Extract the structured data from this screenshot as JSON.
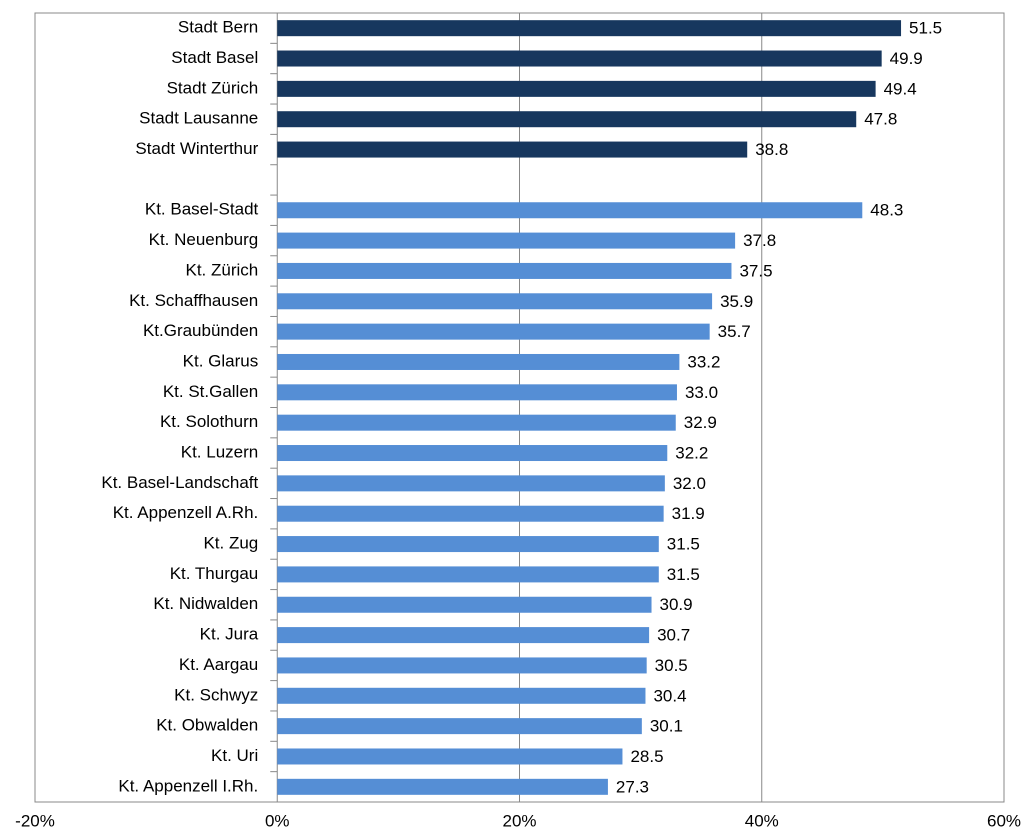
{
  "chart_data": {
    "type": "barh",
    "categories": [
      "Stadt Bern",
      "Stadt Basel",
      "Stadt Zürich",
      "Stadt Lausanne",
      "Stadt Winterthur",
      null,
      "Kt. Basel-Stadt",
      "Kt. Neuenburg",
      "Kt. Zürich",
      "Kt. Schaffhausen",
      "Kt.Graubünden",
      "Kt. Glarus",
      "Kt. St.Gallen",
      "Kt. Solothurn",
      "Kt. Luzern",
      "Kt. Basel-Landschaft",
      "Kt. Appenzell A.Rh.",
      "Kt. Zug",
      "Kt. Thurgau",
      "Kt. Nidwalden",
      "Kt. Jura",
      "Kt. Aargau",
      "Kt. Schwyz",
      "Kt. Obwalden",
      "Kt. Uri",
      "Kt. Appenzell I.Rh."
    ],
    "values": [
      51.5,
      49.9,
      49.4,
      47.8,
      38.8,
      null,
      48.3,
      37.8,
      37.5,
      35.9,
      35.7,
      33.2,
      33.0,
      32.9,
      32.2,
      32.0,
      31.9,
      31.5,
      31.5,
      30.9,
      30.7,
      30.5,
      30.4,
      30.1,
      28.5,
      27.3
    ],
    "value_labels": [
      "51.5",
      "49.9",
      "49.4",
      "47.8",
      "38.8",
      null,
      "48.3",
      "37.8",
      "37.5",
      "35.9",
      "35.7",
      "33.2",
      "33.0",
      "32.9",
      "32.2",
      "32.0",
      "31.9",
      "31.5",
      "31.5",
      "30.9",
      "30.7",
      "30.5",
      "30.4",
      "30.1",
      "28.5",
      "27.3"
    ],
    "bar_colors": [
      "#17375e",
      "#17375e",
      "#17375e",
      "#17375e",
      "#17375e",
      null,
      "#558ed5",
      "#558ed5",
      "#558ed5",
      "#558ed5",
      "#558ed5",
      "#558ed5",
      "#558ed5",
      "#558ed5",
      "#558ed5",
      "#558ed5",
      "#558ed5",
      "#558ed5",
      "#558ed5",
      "#558ed5",
      "#558ed5",
      "#558ed5",
      "#558ed5",
      "#558ed5",
      "#558ed5",
      "#558ed5"
    ],
    "xlim": [
      -20,
      60
    ],
    "xticks": [
      {
        "value": -20,
        "label": "-20%"
      },
      {
        "value": 0,
        "label": "0%"
      },
      {
        "value": 20,
        "label": "20%"
      },
      {
        "value": 40,
        "label": "40%"
      },
      {
        "value": 60,
        "label": "60%"
      }
    ],
    "grid": true
  }
}
